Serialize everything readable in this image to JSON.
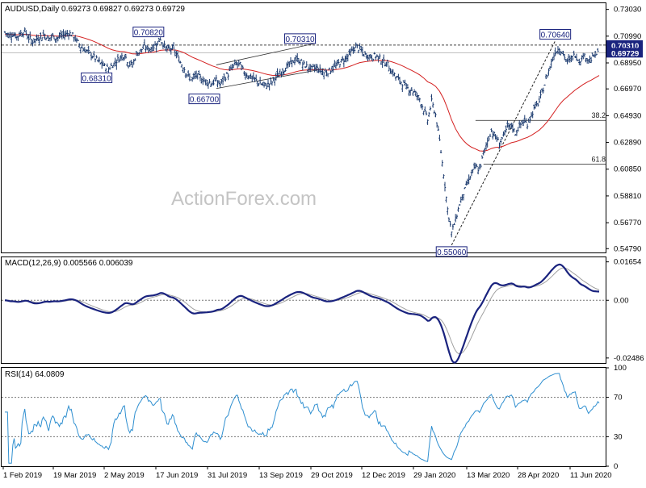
{
  "header": {
    "symbol": "AUDUSD",
    "timeframe": "Daily",
    "ohlc": "0.69273 0.69827 0.69273 0.69729"
  },
  "watermark": "ActionForex.com",
  "colors": {
    "background": "#ffffff",
    "bars": "#1b3a6e",
    "sma": "#d42020",
    "macd": "#1a237e",
    "signal": "#a0a0a0",
    "rsi": "#2f8fd0",
    "label_border": "#1a237e",
    "price_tag": "#1a237e"
  },
  "chart_data": [
    {
      "type": "bar",
      "panel": "price",
      "title": "AUDUSD,Daily",
      "y_ticks": [
        "0.73030",
        "0.70990",
        "0.68950",
        "0.66970",
        "0.64930",
        "0.62890",
        "0.60850",
        "0.58810",
        "0.56770",
        "0.54790"
      ],
      "ylim": [
        0.545,
        0.735
      ],
      "x_labels": [
        "1 Feb 2019",
        "19 Mar 2019",
        "2 May 2019",
        "17 Jun 2019",
        "31 Jul 2019",
        "13 Sep 2019",
        "29 Oct 2019",
        "12 Dec 2019",
        "29 Jan 2020",
        "13 Mar 2020",
        "28 Apr 2020",
        "11 Jun 2020"
      ],
      "close": [
        0.713,
        0.7105,
        0.7115,
        0.7095,
        0.712,
        0.7135,
        0.7085,
        0.706,
        0.7078,
        0.7095,
        0.711,
        0.708,
        0.71,
        0.7085,
        0.7098,
        0.711,
        0.7125,
        0.7105,
        0.7065,
        0.702,
        0.6995,
        0.6975,
        0.695,
        0.692,
        0.689,
        0.687,
        0.685,
        0.688,
        0.691,
        0.694,
        0.696,
        0.689,
        0.688,
        0.696,
        0.699,
        0.7015,
        0.7,
        0.701,
        0.704,
        0.708,
        0.702,
        0.699,
        0.701,
        0.696,
        0.69,
        0.685,
        0.679,
        0.677,
        0.68,
        0.678,
        0.676,
        0.675,
        0.674,
        0.676,
        0.673,
        0.678,
        0.681,
        0.686,
        0.689,
        0.688,
        0.682,
        0.68,
        0.678,
        0.676,
        0.674,
        0.672,
        0.673,
        0.675,
        0.679,
        0.681,
        0.685,
        0.687,
        0.69,
        0.692,
        0.691,
        0.688,
        0.686,
        0.685,
        0.686,
        0.684,
        0.682,
        0.683,
        0.685,
        0.687,
        0.69,
        0.692,
        0.695,
        0.698,
        0.702,
        0.7,
        0.696,
        0.695,
        0.694,
        0.695,
        0.693,
        0.69,
        0.688,
        0.683,
        0.679,
        0.676,
        0.673,
        0.67,
        0.669,
        0.666,
        0.662,
        0.654,
        0.646,
        0.66,
        0.65,
        0.63,
        0.605,
        0.578,
        0.56,
        0.57,
        0.582,
        0.59,
        0.598,
        0.605,
        0.61,
        0.608,
        0.62,
        0.63,
        0.638,
        0.633,
        0.628,
        0.634,
        0.64,
        0.642,
        0.636,
        0.641,
        0.645,
        0.643,
        0.65,
        0.656,
        0.66,
        0.67,
        0.68,
        0.69,
        0.698,
        0.701,
        0.696,
        0.69,
        0.693,
        0.696,
        0.691,
        0.695,
        0.693,
        0.692,
        0.696,
        0.6973
      ],
      "sma_start_value": 0.711,
      "sma_end_value": 0.674,
      "sma_description": "55-day moving average (red line)",
      "last_price": 0.69729,
      "tags": {
        "last_price": "0.69729",
        "ref_level": "0.70310"
      },
      "ref_level": 0.7031,
      "annotations": [
        {
          "text": "0.70820",
          "value": 0.7082,
          "index": 36
        },
        {
          "text": "0.68310",
          "value": 0.6831,
          "index": 23
        },
        {
          "text": "0.66700",
          "value": 0.667,
          "index": 50
        },
        {
          "text": "0.70310",
          "value": 0.7031,
          "index": 74
        },
        {
          "text": "0.70640",
          "value": 0.7064,
          "index": 138
        },
        {
          "text": "0.55060",
          "value": 0.5506,
          "index": 112
        }
      ],
      "fib_levels": [
        {
          "label": "38.2",
          "value": 0.6457
        },
        {
          "label": "61.8",
          "value": 0.6124
        }
      ],
      "channel": {
        "upper": [
          [
            53,
            0.688
          ],
          [
            78,
            0.7045
          ]
        ],
        "lower": [
          [
            53,
            0.67
          ],
          [
            80,
            0.685
          ]
        ]
      },
      "trendline": [
        [
          112,
          0.5506
        ],
        [
          138,
          0.7064
        ]
      ],
      "grid": false
    },
    {
      "type": "line",
      "panel": "macd",
      "title": "MACD(12,26,9) 0.005566 0.006039",
      "y_ticks": [
        "0.01654",
        "0.00",
        "-0.02486"
      ],
      "ylim": [
        -0.027,
        0.0185
      ],
      "macd_description": "MACD line (dark blue) with signal line (grey)",
      "zero_line": true
    },
    {
      "type": "line",
      "panel": "rsi",
      "title": "RSI(14) 64.0809",
      "y_ticks": [
        "100",
        "70",
        "30",
        "0"
      ],
      "ylim": [
        0,
        100
      ],
      "levels": [
        70,
        30
      ],
      "last_value": 64.0809
    }
  ]
}
